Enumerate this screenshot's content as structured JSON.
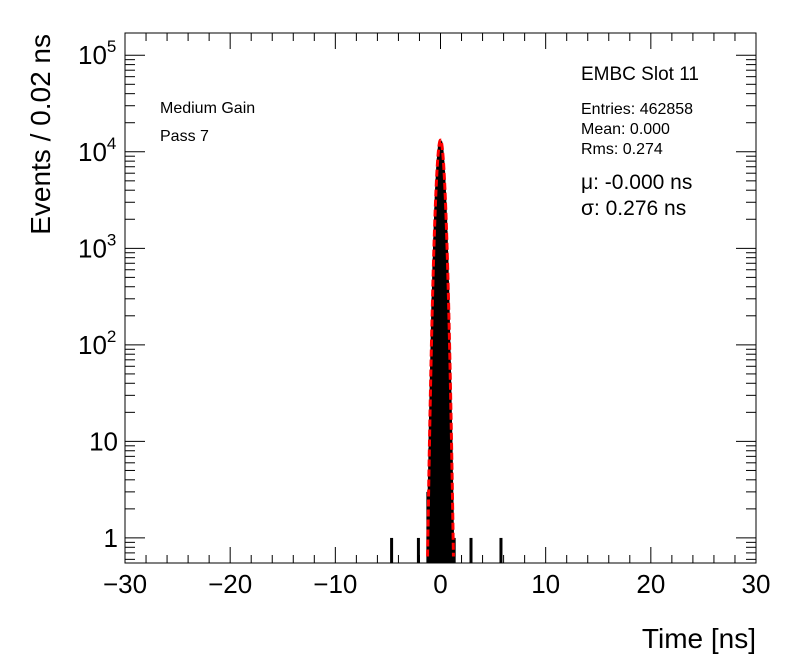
{
  "chart_data": {
    "type": "histogram",
    "xlabel": "Time [ns]",
    "ylabel": "Events / 0.02 ns",
    "xlim": [
      -30,
      30
    ],
    "ylim": [
      0.55,
      170000
    ],
    "yscale": "log",
    "grid": false,
    "x_ticks": [
      -30,
      -20,
      -10,
      0,
      10,
      20,
      30
    ],
    "x_tick_labels": [
      "−30",
      "−20",
      "−10",
      "0",
      "10",
      "20",
      "30"
    ],
    "y_ticks": [
      1,
      10,
      100,
      1000,
      10000,
      100000
    ],
    "y_tick_labels": [
      {
        "base": "1",
        "exp": ""
      },
      {
        "base": "10",
        "exp": ""
      },
      {
        "base": "10",
        "exp": "2"
      },
      {
        "base": "10",
        "exp": "3"
      },
      {
        "base": "10",
        "exp": "4"
      },
      {
        "base": "10",
        "exp": "5"
      }
    ],
    "annotations_left": [
      "Medium Gain",
      "Pass 7"
    ],
    "title": "EMBC Slot 11",
    "stats": [
      "Entries: 462858",
      "Mean: 0.000",
      "Rms: 0.274"
    ],
    "fit_text": [
      "μ: -0.000 ns",
      "σ: 0.276 ns"
    ],
    "fit_color": "#ff0000",
    "hist_color": "#000000",
    "fit": {
      "function": "gaussian",
      "amplitude": 13200,
      "mean": 0.0,
      "sigma": 0.276
    },
    "histogram": {
      "core": {
        "amplitude": 12800,
        "mean": 0.0,
        "sigma": 0.274,
        "range": [
          -1.3,
          1.3
        ],
        "bin_width": 0.02
      },
      "outliers": [
        {
          "x": -4.65,
          "count": 1
        },
        {
          "x": -2.1,
          "count": 1
        },
        {
          "x": -1.2,
          "count": 3
        },
        {
          "x": 1.3,
          "count": 1
        },
        {
          "x": 2.9,
          "count": 1
        },
        {
          "x": 5.75,
          "count": 1
        }
      ]
    }
  }
}
